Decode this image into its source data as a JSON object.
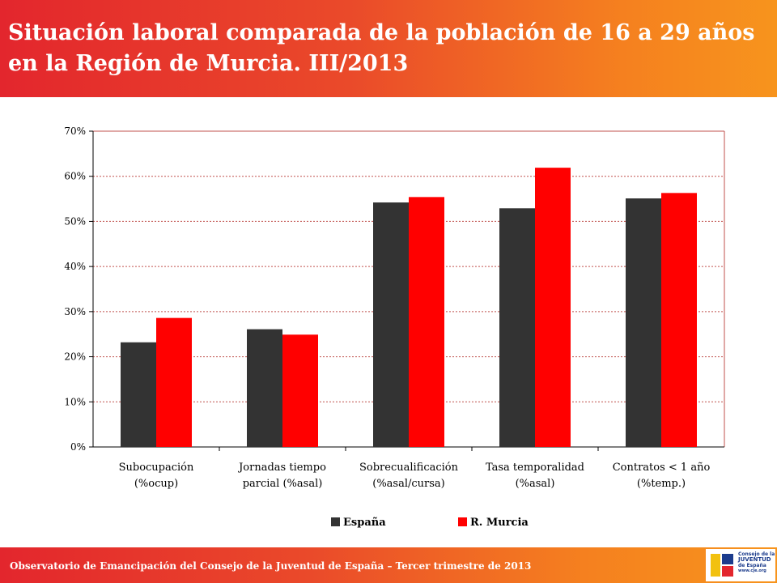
{
  "header": {
    "title": "Situación laboral comparada de la población de 16 a 29 años en la Región de Murcia. III/2013"
  },
  "footer": {
    "text": "Observatorio de Emancipación del Consejo de la Juventud de España – Tercer trimestre de 2013",
    "logo_line1": "Consejo de la",
    "logo_line2": "JUVENTUD",
    "logo_line3": "de España",
    "logo_url": "www.cje.org"
  },
  "colors": {
    "header_start": "#e3262d",
    "header_end": "#f7941d",
    "series_espana": "#333333",
    "series_murcia": "#ff0000",
    "grid": "#c0504d"
  },
  "chart_data": {
    "type": "bar",
    "title": "",
    "xlabel": "",
    "ylabel": "",
    "categories": [
      [
        "Subocupación",
        "(%ocup)"
      ],
      [
        "Jornadas tiempo",
        "parcial (%asal)"
      ],
      [
        "Sobrecualificación",
        "(%asal/cursa)"
      ],
      [
        "Tasa temporalidad",
        "(%asal)"
      ],
      [
        "Contratos < 1 año",
        "(%temp.)"
      ]
    ],
    "series": [
      {
        "name": "España",
        "color": "#333333",
        "values": [
          23.2,
          26.1,
          54.2,
          52.9,
          55.1
        ]
      },
      {
        "name": "R. Murcia",
        "color": "#ff0000",
        "values": [
          28.6,
          24.9,
          55.4,
          61.9,
          56.3
        ]
      }
    ],
    "ylim": [
      0,
      70
    ],
    "yticks": [
      "0%",
      "10%",
      "20%",
      "30%",
      "40%",
      "50%",
      "60%",
      "70%"
    ],
    "grid": true,
    "legend_position": "bottom"
  }
}
